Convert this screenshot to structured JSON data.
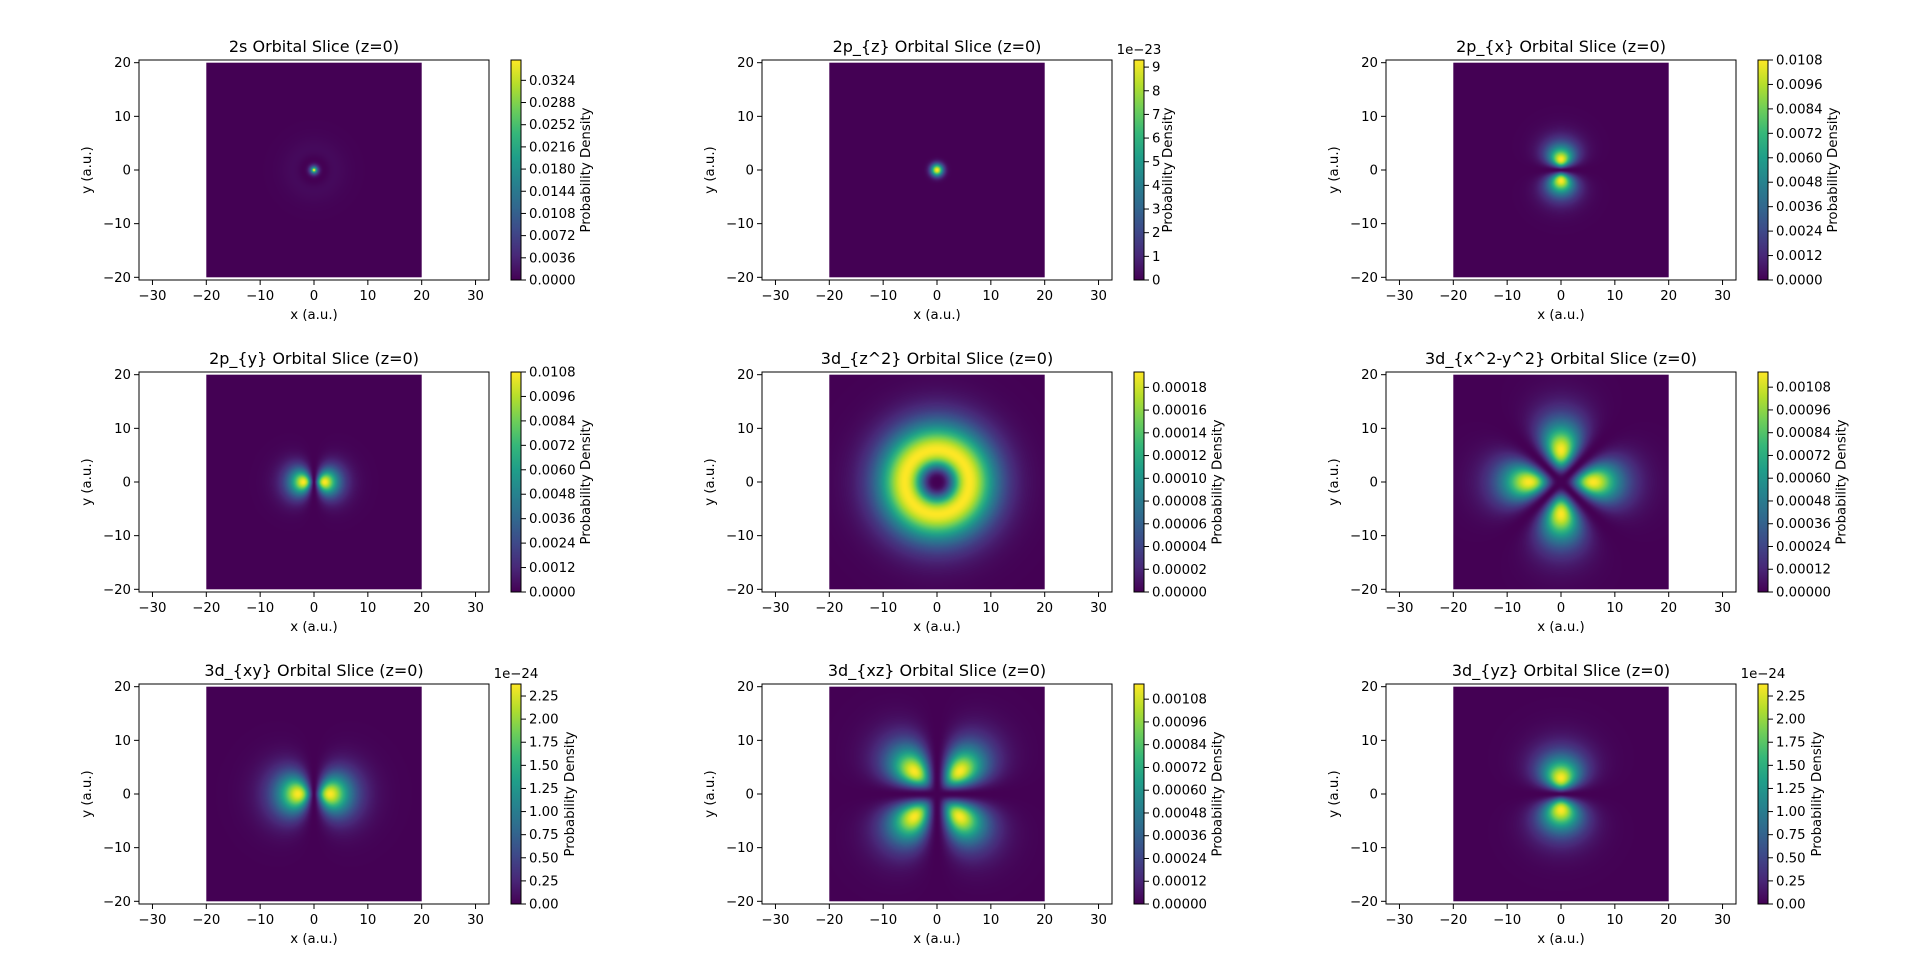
{
  "figure": {
    "name": "hydrogen-orbital-slices"
  },
  "colormap": {
    "name": "viridis",
    "stops": [
      "#440154",
      "#482878",
      "#3e4989",
      "#31688e",
      "#26828e",
      "#1f9e89",
      "#35b779",
      "#6ece58",
      "#b5de2b",
      "#fde725"
    ]
  },
  "chart_data": [
    {
      "type": "heatmap",
      "orbital": "2s",
      "title": "2s Orbital Slice (z=0)",
      "xlabel": "x (a.u.)",
      "ylabel": "y (a.u.)",
      "xlim": [
        -32.5,
        32.5
      ],
      "ylim": [
        -20.5,
        20.5
      ],
      "extent": [
        -20,
        20,
        -20,
        20
      ],
      "xticks": [
        -30,
        -20,
        -10,
        0,
        10,
        20,
        30
      ],
      "xtick_labels": [
        "−30",
        "−20",
        "−10",
        "0",
        "10",
        "20",
        "30"
      ],
      "yticks": [
        -20,
        -10,
        0,
        10,
        20
      ],
      "ytick_labels": [
        "−20",
        "−10",
        "0",
        "10",
        "20"
      ],
      "colorbar": {
        "label": "Probability Density",
        "vmin": 0,
        "vmax": 0.0357,
        "offset_text": "",
        "ticks": [
          0,
          0.0036,
          0.0072,
          0.0108,
          0.0144,
          0.018,
          0.0216,
          0.0252,
          0.0288,
          0.0324
        ],
        "tick_labels": [
          "0.0000",
          "0.0036",
          "0.0072",
          "0.0108",
          "0.0144",
          "0.0180",
          "0.0216",
          "0.0252",
          "0.0288",
          "0.0324"
        ]
      }
    },
    {
      "type": "heatmap",
      "orbital": "2pz",
      "title": "2p_{z} Orbital Slice (z=0)",
      "xlabel": "x (a.u.)",
      "ylabel": "y (a.u.)",
      "xlim": [
        -32.5,
        32.5
      ],
      "ylim": [
        -20.5,
        20.5
      ],
      "extent": [
        -20,
        20,
        -20,
        20
      ],
      "xticks": [
        -30,
        -20,
        -10,
        0,
        10,
        20,
        30
      ],
      "xtick_labels": [
        "−30",
        "−20",
        "−10",
        "0",
        "10",
        "20",
        "30"
      ],
      "yticks": [
        -20,
        -10,
        0,
        10,
        20
      ],
      "ytick_labels": [
        "−20",
        "−10",
        "0",
        "10",
        "20"
      ],
      "colorbar": {
        "label": "Probability Density",
        "vmin": 0,
        "vmax": 9.3,
        "offset_text": "1e−23",
        "ticks": [
          0,
          1,
          2,
          3,
          4,
          5,
          6,
          7,
          8,
          9
        ],
        "tick_labels": [
          "0",
          "1",
          "2",
          "3",
          "4",
          "5",
          "6",
          "7",
          "8",
          "9"
        ]
      }
    },
    {
      "type": "heatmap",
      "orbital": "2px",
      "title": "2p_{x} Orbital Slice (z=0)",
      "xlabel": "x (a.u.)",
      "ylabel": "y (a.u.)",
      "xlim": [
        -32.5,
        32.5
      ],
      "ylim": [
        -20.5,
        20.5
      ],
      "extent": [
        -20,
        20,
        -20,
        20
      ],
      "xticks": [
        -30,
        -20,
        -10,
        0,
        10,
        20,
        30
      ],
      "xtick_labels": [
        "−30",
        "−20",
        "−10",
        "0",
        "10",
        "20",
        "30"
      ],
      "yticks": [
        -20,
        -10,
        0,
        10,
        20
      ],
      "ytick_labels": [
        "−20",
        "−10",
        "0",
        "10",
        "20"
      ],
      "colorbar": {
        "label": "Probability Density",
        "vmin": 0,
        "vmax": 0.0108,
        "offset_text": "",
        "ticks": [
          0,
          0.0012,
          0.0024,
          0.0036,
          0.0048,
          0.006,
          0.0072,
          0.0084,
          0.0096,
          0.0108
        ],
        "tick_labels": [
          "0.0000",
          "0.0012",
          "0.0024",
          "0.0036",
          "0.0048",
          "0.0060",
          "0.0072",
          "0.0084",
          "0.0096",
          "0.0108"
        ]
      }
    },
    {
      "type": "heatmap",
      "orbital": "2py",
      "title": "2p_{y} Orbital Slice (z=0)",
      "xlabel": "x (a.u.)",
      "ylabel": "y (a.u.)",
      "xlim": [
        -32.5,
        32.5
      ],
      "ylim": [
        -20.5,
        20.5
      ],
      "extent": [
        -20,
        20,
        -20,
        20
      ],
      "xticks": [
        -30,
        -20,
        -10,
        0,
        10,
        20,
        30
      ],
      "xtick_labels": [
        "−30",
        "−20",
        "−10",
        "0",
        "10",
        "20",
        "30"
      ],
      "yticks": [
        -20,
        -10,
        0,
        10,
        20
      ],
      "ytick_labels": [
        "−20",
        "−10",
        "0",
        "10",
        "20"
      ],
      "colorbar": {
        "label": "Probability Density",
        "vmin": 0,
        "vmax": 0.0108,
        "offset_text": "",
        "ticks": [
          0,
          0.0012,
          0.0024,
          0.0036,
          0.0048,
          0.006,
          0.0072,
          0.0084,
          0.0096,
          0.0108
        ],
        "tick_labels": [
          "0.0000",
          "0.0012",
          "0.0024",
          "0.0036",
          "0.0048",
          "0.0060",
          "0.0072",
          "0.0084",
          "0.0096",
          "0.0108"
        ]
      }
    },
    {
      "type": "heatmap",
      "orbital": "3dz2",
      "title": "3d_{z^2} Orbital Slice (z=0)",
      "xlabel": "x (a.u.)",
      "ylabel": "y (a.u.)",
      "xlim": [
        -32.5,
        32.5
      ],
      "ylim": [
        -20.5,
        20.5
      ],
      "extent": [
        -20,
        20,
        -20,
        20
      ],
      "xticks": [
        -30,
        -20,
        -10,
        0,
        10,
        20,
        30
      ],
      "xtick_labels": [
        "−30",
        "−20",
        "−10",
        "0",
        "10",
        "20",
        "30"
      ],
      "yticks": [
        -20,
        -10,
        0,
        10,
        20
      ],
      "ytick_labels": [
        "−20",
        "−10",
        "0",
        "10",
        "20"
      ],
      "colorbar": {
        "label": "Probability Density",
        "vmin": 0,
        "vmax": 0.0001935,
        "offset_text": "",
        "ticks": [
          0,
          2e-05,
          4e-05,
          6e-05,
          8e-05,
          0.0001,
          0.00012,
          0.00014,
          0.00016,
          0.00018
        ],
        "tick_labels": [
          "0.00000",
          "0.00002",
          "0.00004",
          "0.00006",
          "0.00008",
          "0.00010",
          "0.00012",
          "0.00014",
          "0.00016",
          "0.00018"
        ]
      }
    },
    {
      "type": "heatmap",
      "orbital": "3dx2y2",
      "title": "3d_{x^2-y^2} Orbital Slice (z=0)",
      "xlabel": "x (a.u.)",
      "ylabel": "y (a.u.)",
      "xlim": [
        -32.5,
        32.5
      ],
      "ylim": [
        -20.5,
        20.5
      ],
      "extent": [
        -20,
        20,
        -20,
        20
      ],
      "xticks": [
        -30,
        -20,
        -10,
        0,
        10,
        20,
        30
      ],
      "xtick_labels": [
        "−30",
        "−20",
        "−10",
        "0",
        "10",
        "20",
        "30"
      ],
      "yticks": [
        -20,
        -10,
        0,
        10,
        20
      ],
      "ytick_labels": [
        "−20",
        "−10",
        "0",
        "10",
        "20"
      ],
      "colorbar": {
        "label": "Probability Density",
        "vmin": 0,
        "vmax": 0.00116,
        "offset_text": "",
        "ticks": [
          0,
          0.00012,
          0.00024,
          0.00036,
          0.00048,
          0.0006,
          0.00072,
          0.00084,
          0.00096,
          0.00108
        ],
        "tick_labels": [
          "0.00000",
          "0.00012",
          "0.00024",
          "0.00036",
          "0.00048",
          "0.00060",
          "0.00072",
          "0.00084",
          "0.00096",
          "0.00108"
        ]
      }
    },
    {
      "type": "heatmap",
      "orbital": "3dxy",
      "title": "3d_{xy} Orbital Slice (z=0)",
      "xlabel": "x (a.u.)",
      "ylabel": "y (a.u.)",
      "xlim": [
        -32.5,
        32.5
      ],
      "ylim": [
        -20.5,
        20.5
      ],
      "extent": [
        -20,
        20,
        -20,
        20
      ],
      "xticks": [
        -30,
        -20,
        -10,
        0,
        10,
        20,
        30
      ],
      "xtick_labels": [
        "−30",
        "−20",
        "−10",
        "0",
        "10",
        "20",
        "30"
      ],
      "yticks": [
        -20,
        -10,
        0,
        10,
        20
      ],
      "ytick_labels": [
        "−20",
        "−10",
        "0",
        "10",
        "20"
      ],
      "colorbar": {
        "label": "Probability Density",
        "vmin": 0,
        "vmax": 2.38,
        "offset_text": "1e−24",
        "ticks": [
          0,
          0.25,
          0.5,
          0.75,
          1,
          1.25,
          1.5,
          1.75,
          2,
          2.25
        ],
        "tick_labels": [
          "0.00",
          "0.25",
          "0.50",
          "0.75",
          "1.00",
          "1.25",
          "1.50",
          "1.75",
          "2.00",
          "2.25"
        ]
      }
    },
    {
      "type": "heatmap",
      "orbital": "3dxz",
      "title": "3d_{xz} Orbital Slice (z=0)",
      "xlabel": "x (a.u.)",
      "ylabel": "y (a.u.)",
      "xlim": [
        -32.5,
        32.5
      ],
      "ylim": [
        -20.5,
        20.5
      ],
      "extent": [
        -20,
        20,
        -20,
        20
      ],
      "xticks": [
        -30,
        -20,
        -10,
        0,
        10,
        20,
        30
      ],
      "xtick_labels": [
        "−30",
        "−20",
        "−10",
        "0",
        "10",
        "20",
        "30"
      ],
      "yticks": [
        -20,
        -10,
        0,
        10,
        20
      ],
      "ytick_labels": [
        "−20",
        "−10",
        "0",
        "10",
        "20"
      ],
      "colorbar": {
        "label": "Probability Density",
        "vmin": 0,
        "vmax": 0.00116,
        "offset_text": "",
        "ticks": [
          0,
          0.00012,
          0.00024,
          0.00036,
          0.00048,
          0.0006,
          0.00072,
          0.00084,
          0.00096,
          0.00108
        ],
        "tick_labels": [
          "0.00000",
          "0.00012",
          "0.00024",
          "0.00036",
          "0.00048",
          "0.00060",
          "0.00072",
          "0.00084",
          "0.00096",
          "0.00108"
        ]
      }
    },
    {
      "type": "heatmap",
      "orbital": "3dyz",
      "title": "3d_{yz} Orbital Slice (z=0)",
      "xlabel": "x (a.u.)",
      "ylabel": "y (a.u.)",
      "xlim": [
        -32.5,
        32.5
      ],
      "ylim": [
        -20.5,
        20.5
      ],
      "extent": [
        -20,
        20,
        -20,
        20
      ],
      "xticks": [
        -30,
        -20,
        -10,
        0,
        10,
        20,
        30
      ],
      "xtick_labels": [
        "−30",
        "−20",
        "−10",
        "0",
        "10",
        "20",
        "30"
      ],
      "yticks": [
        -20,
        -10,
        0,
        10,
        20
      ],
      "ytick_labels": [
        "−20",
        "−10",
        "0",
        "10",
        "20"
      ],
      "colorbar": {
        "label": "Probability Density",
        "vmin": 0,
        "vmax": 2.38,
        "offset_text": "1e−24",
        "ticks": [
          0,
          0.25,
          0.5,
          0.75,
          1,
          1.25,
          1.5,
          1.75,
          2,
          2.25
        ],
        "tick_labels": [
          "0.00",
          "0.25",
          "0.50",
          "0.75",
          "1.00",
          "1.25",
          "1.50",
          "1.75",
          "2.00",
          "2.25"
        ]
      }
    }
  ]
}
